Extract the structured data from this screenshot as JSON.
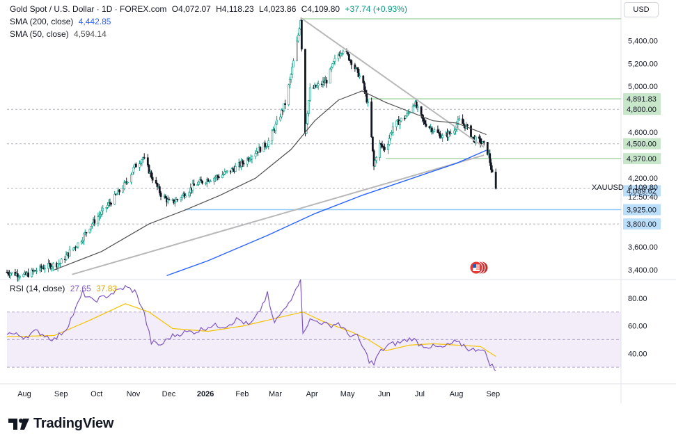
{
  "header": {
    "title": "Gold Spot / U.S. Dollar · 1D · FOREX.com",
    "open": "O4,072.07",
    "high": "H4,118.23",
    "low": "L4,023.86",
    "close": "C4,109.80",
    "change": "+37.74 (+0.93%)",
    "sma200_label": "SMA (200, close)",
    "sma200_value": "4,442.85",
    "sma50_label": "SMA (50, close)",
    "sma50_value": "4,594.14",
    "rsi_label": "RSI (14, close)",
    "rsi_value": "27.65",
    "rsi_ma_value": "37.83",
    "currency_button": "USD"
  },
  "brand": {
    "name": "TradingView"
  },
  "colors": {
    "up": "#089981",
    "down": "#131722",
    "sma200": "#2962ff",
    "sma50": "#505050",
    "trendline": "#b8b8b8",
    "rsi": "#7e57c2",
    "rsi_ma": "#f5c300",
    "level_green": "#c8e6c9",
    "level_blue": "#bbdefb",
    "green_tag": "#c8e6c9",
    "blue_tag": "#bbdefb"
  },
  "chart_data": {
    "type": "candlestick",
    "symbol": "XAUUSD",
    "last_price": "4,109.80",
    "countdown": "12:50:40",
    "y_axis_ticks": [
      "5,400.00",
      "5,200.00",
      "5,000.00",
      "4,600.00",
      "4,200.00",
      "3,600.00",
      "3,400.00"
    ],
    "y_range": [
      3340,
      5620
    ],
    "x_axis_labels": [
      "Aug",
      "Sep",
      "Oct",
      "Nov",
      "Dec",
      "2026",
      "Feb",
      "Mar",
      "Apr",
      "May",
      "Jun",
      "Jul",
      "Aug",
      "Sep"
    ],
    "x_range_days": [
      0,
      415
    ],
    "price_tags": [
      {
        "label": "4,891.83",
        "value": 4891.83,
        "color": "green"
      },
      {
        "label": "4,800.00",
        "value": 4800,
        "color": "green"
      },
      {
        "label": "4,500.00",
        "value": 4500,
        "color": "green"
      },
      {
        "label": "4,370.00",
        "value": 4370,
        "color": "green"
      },
      {
        "label": "4,089.62",
        "value": 4089.62,
        "color": "blue"
      },
      {
        "label": "3,925.00",
        "value": 3925,
        "color": "blue"
      },
      {
        "label": "3,800.00",
        "value": 3800,
        "color": "blue"
      }
    ],
    "levels": [
      {
        "value": 5590,
        "color": "green",
        "from_day": 248
      },
      {
        "value": 4891.83,
        "color": "green",
        "from_day": 306
      },
      {
        "value": 4370,
        "color": "green",
        "from_day": 320
      },
      {
        "value": 3925,
        "color": "blue",
        "from_day": 150
      }
    ],
    "dashed_levels": [
      4800,
      4500,
      4109.8,
      3800
    ],
    "price_anchors": [
      [
        0,
        3380
      ],
      [
        15,
        3350
      ],
      [
        30,
        3420
      ],
      [
        45,
        3460
      ],
      [
        55,
        3580
      ],
      [
        62,
        3650
      ],
      [
        70,
        3780
      ],
      [
        80,
        3900
      ],
      [
        90,
        4020
      ],
      [
        100,
        4150
      ],
      [
        108,
        4300
      ],
      [
        115,
        4380
      ],
      [
        122,
        4220
      ],
      [
        130,
        4060
      ],
      [
        138,
        3980
      ],
      [
        145,
        4020
      ],
      [
        152,
        4080
      ],
      [
        160,
        4150
      ],
      [
        170,
        4190
      ],
      [
        180,
        4220
      ],
      [
        190,
        4270
      ],
      [
        200,
        4340
      ],
      [
        210,
        4430
      ],
      [
        220,
        4500
      ],
      [
        228,
        4680
      ],
      [
        235,
        4850
      ],
      [
        240,
        5100
      ],
      [
        245,
        5380
      ],
      [
        248,
        5590
      ],
      [
        252,
        4600
      ],
      [
        256,
        4970
      ],
      [
        262,
        5000
      ],
      [
        270,
        5050
      ],
      [
        278,
        5250
      ],
      [
        284,
        5330
      ],
      [
        292,
        5200
      ],
      [
        300,
        5050
      ],
      [
        306,
        4800
      ],
      [
        310,
        4300
      ],
      [
        314,
        4500
      ],
      [
        320,
        4450
      ],
      [
        326,
        4650
      ],
      [
        332,
        4700
      ],
      [
        338,
        4750
      ],
      [
        344,
        4860
      ],
      [
        352,
        4690
      ],
      [
        360,
        4620
      ],
      [
        368,
        4560
      ],
      [
        376,
        4600
      ],
      [
        382,
        4700
      ],
      [
        388,
        4650
      ],
      [
        394,
        4540
      ],
      [
        400,
        4520
      ],
      [
        404,
        4480
      ],
      [
        407,
        4400
      ],
      [
        410,
        4230
      ],
      [
        413,
        4110
      ]
    ],
    "sma50": [
      [
        40,
        3400
      ],
      [
        80,
        3560
      ],
      [
        120,
        3800
      ],
      [
        150,
        3920
      ],
      [
        180,
        4050
      ],
      [
        210,
        4200
      ],
      [
        240,
        4450
      ],
      [
        260,
        4700
      ],
      [
        280,
        4880
      ],
      [
        300,
        4960
      ],
      [
        320,
        4860
      ],
      [
        340,
        4780
      ],
      [
        360,
        4700
      ],
      [
        380,
        4680
      ],
      [
        395,
        4620
      ],
      [
        405,
        4580
      ]
    ],
    "sma200": [
      [
        135,
        3350
      ],
      [
        170,
        3480
      ],
      [
        220,
        3700
      ],
      [
        260,
        3890
      ],
      [
        300,
        4050
      ],
      [
        340,
        4190
      ],
      [
        380,
        4330
      ],
      [
        405,
        4442.85
      ]
    ],
    "trendlines": [
      {
        "from": [
          248,
          5600
        ],
        "to": [
          403,
          4470
        ]
      },
      {
        "from": [
          55,
          3360
        ],
        "to": [
          403,
          4400
        ]
      }
    ],
    "rsi": {
      "ticks": [
        "80.00",
        "60.00",
        "40.00"
      ],
      "range": [
        20,
        92
      ],
      "band": [
        30,
        70
      ],
      "midline": 50,
      "value": 27.65,
      "ma_value": 37.83,
      "anchors": [
        [
          0,
          55
        ],
        [
          15,
          52
        ],
        [
          25,
          56
        ],
        [
          40,
          50
        ],
        [
          50,
          58
        ],
        [
          58,
          72
        ],
        [
          64,
          84
        ],
        [
          72,
          78
        ],
        [
          80,
          80
        ],
        [
          90,
          84
        ],
        [
          100,
          88
        ],
        [
          108,
          85
        ],
        [
          115,
          72
        ],
        [
          122,
          48
        ],
        [
          130,
          46
        ],
        [
          138,
          52
        ],
        [
          148,
          55
        ],
        [
          160,
          56
        ],
        [
          172,
          60
        ],
        [
          185,
          60
        ],
        [
          195,
          65
        ],
        [
          205,
          60
        ],
        [
          212,
          68
        ],
        [
          220,
          83
        ],
        [
          225,
          62
        ],
        [
          235,
          72
        ],
        [
          240,
          80
        ],
        [
          245,
          90
        ],
        [
          248,
          92
        ],
        [
          250,
          56
        ],
        [
          256,
          64
        ],
        [
          264,
          63
        ],
        [
          272,
          60
        ],
        [
          280,
          62
        ],
        [
          288,
          54
        ],
        [
          296,
          52
        ],
        [
          302,
          42
        ],
        [
          306,
          35
        ],
        [
          310,
          32
        ],
        [
          314,
          40
        ],
        [
          322,
          46
        ],
        [
          332,
          48
        ],
        [
          342,
          51
        ],
        [
          350,
          46
        ],
        [
          358,
          45
        ],
        [
          368,
          44
        ],
        [
          378,
          48
        ],
        [
          386,
          46
        ],
        [
          392,
          42
        ],
        [
          400,
          44
        ],
        [
          404,
          40
        ],
        [
          408,
          33
        ],
        [
          413,
          27.65
        ]
      ],
      "ma_anchors": [
        [
          0,
          52
        ],
        [
          40,
          53
        ],
        [
          70,
          64
        ],
        [
          100,
          76
        ],
        [
          120,
          70
        ],
        [
          140,
          58
        ],
        [
          170,
          56
        ],
        [
          200,
          60
        ],
        [
          230,
          66
        ],
        [
          250,
          70
        ],
        [
          270,
          62
        ],
        [
          290,
          56
        ],
        [
          305,
          50
        ],
        [
          320,
          42
        ],
        [
          340,
          46
        ],
        [
          360,
          47
        ],
        [
          380,
          46
        ],
        [
          400,
          45
        ],
        [
          413,
          37.83
        ]
      ]
    }
  }
}
